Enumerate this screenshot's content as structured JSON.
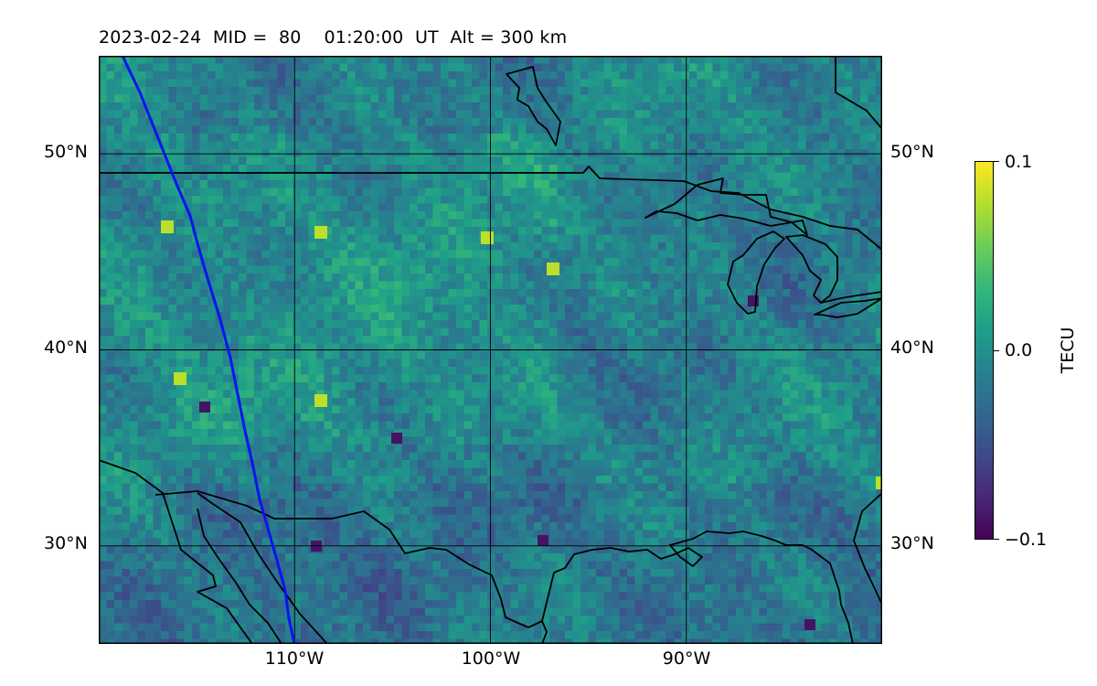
{
  "title": {
    "date": "2023-02-24",
    "mid_text": "MID =  80",
    "time_text": "01:20:00  UT",
    "alt_text": "Alt = 300 km"
  },
  "map": {
    "lon_range": [
      -120,
      -80
    ],
    "lat_range": [
      25,
      55
    ],
    "lat_labels_left": [
      "50°N",
      "40°N",
      "30°N"
    ],
    "lat_labels_right": [
      "50°N",
      "40°N",
      "30°N"
    ],
    "lon_labels": [
      "110°W",
      "100°W",
      "90°W"
    ],
    "gridlines": true,
    "terminator_color": "#0a14f0",
    "coastline_color": "#000000"
  },
  "colorbar": {
    "label": "TECU",
    "min": -0.1,
    "max": 0.1,
    "ticks": [
      "0.1",
      "0.0",
      "−0.1"
    ],
    "colormap": "viridis"
  }
}
